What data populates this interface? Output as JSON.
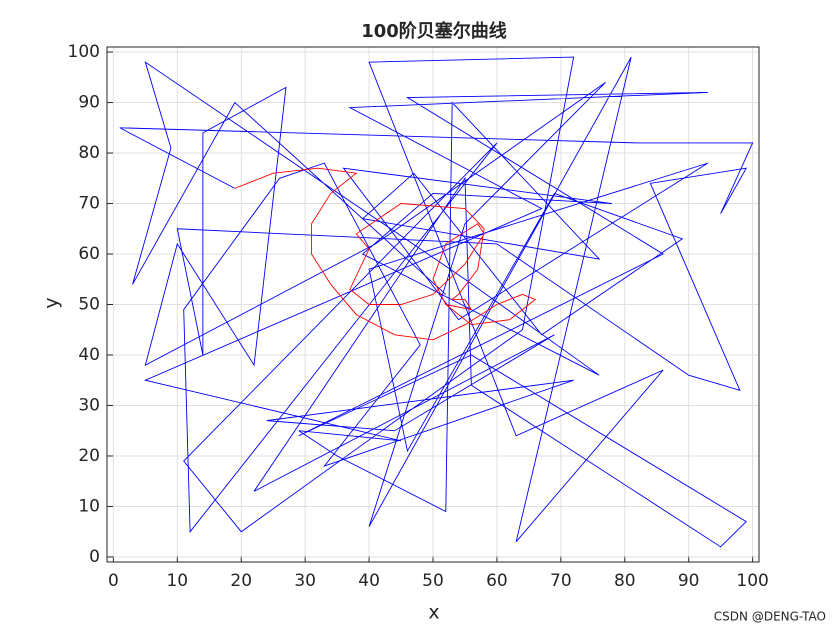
{
  "chart_data": {
    "type": "line",
    "title": "100阶贝塞尔曲线",
    "x_label": "x",
    "y_label": "y",
    "watermark": "CSDN @DENG-TAO",
    "xlim": [
      -1,
      101
    ],
    "ylim": [
      -1,
      101
    ],
    "xticks": [
      0,
      10,
      20,
      30,
      40,
      50,
      60,
      70,
      80,
      90,
      100
    ],
    "yticks": [
      0,
      10,
      20,
      30,
      40,
      50,
      60,
      70,
      80,
      90,
      100
    ],
    "grid": true,
    "series": [
      {
        "color": "#0000ff",
        "x": [
          19,
          1,
          82,
          100,
          95,
          99,
          84,
          98,
          90,
          60,
          10,
          14,
          14,
          27,
          22,
          10,
          5,
          41,
          77,
          55,
          40,
          81,
          63,
          86,
          63,
          40,
          72,
          64,
          20,
          11,
          60,
          12,
          11,
          26,
          33,
          48,
          33,
          72,
          24,
          44,
          69,
          22,
          55,
          56,
          95,
          99,
          56,
          29,
          86,
          46,
          93,
          37,
          67,
          5,
          45,
          29,
          35,
          52,
          53,
          76,
          39,
          47,
          67,
          89,
          69,
          46,
          40,
          93,
          54,
          36,
          78,
          50,
          39,
          76,
          55,
          5,
          9,
          3,
          19,
          52
        ],
        "y": [
          73,
          85,
          82,
          82,
          68,
          77,
          74,
          33,
          36,
          62,
          65,
          40,
          84,
          93,
          38,
          62,
          38,
          62,
          94,
          66,
          6,
          99,
          3,
          37,
          24,
          98,
          99,
          45,
          5,
          19,
          82,
          5,
          49,
          75,
          78,
          42,
          18,
          35,
          27,
          25,
          44,
          13,
          75,
          34,
          2,
          7,
          40,
          24,
          60,
          91,
          92,
          89,
          69,
          35,
          23,
          25,
          20,
          9,
          90,
          59,
          67,
          76,
          44,
          63,
          72,
          21,
          57,
          78,
          47,
          77,
          70,
          72,
          60,
          36,
          55,
          98,
          81,
          54,
          90,
          52
        ]
      },
      {
        "color": "#ff0000",
        "x": [
          19,
          25,
          32,
          38,
          34,
          31,
          31,
          34,
          38,
          44,
          50,
          55,
          60,
          64,
          66,
          62,
          56,
          52,
          50,
          52,
          57,
          58,
          55,
          50,
          45,
          40,
          37,
          40,
          38,
          45,
          55,
          58,
          57,
          54,
          53,
          55,
          56,
          52
        ],
        "y": [
          73,
          76,
          77,
          76,
          72,
          66,
          60,
          54,
          48,
          44,
          43,
          46,
          50,
          52,
          51,
          47,
          46,
          50,
          55,
          62,
          66,
          64,
          58,
          52,
          50,
          50,
          53,
          61,
          64,
          70,
          69,
          65,
          57,
          52,
          51,
          51,
          49,
          50
        ]
      }
    ]
  }
}
